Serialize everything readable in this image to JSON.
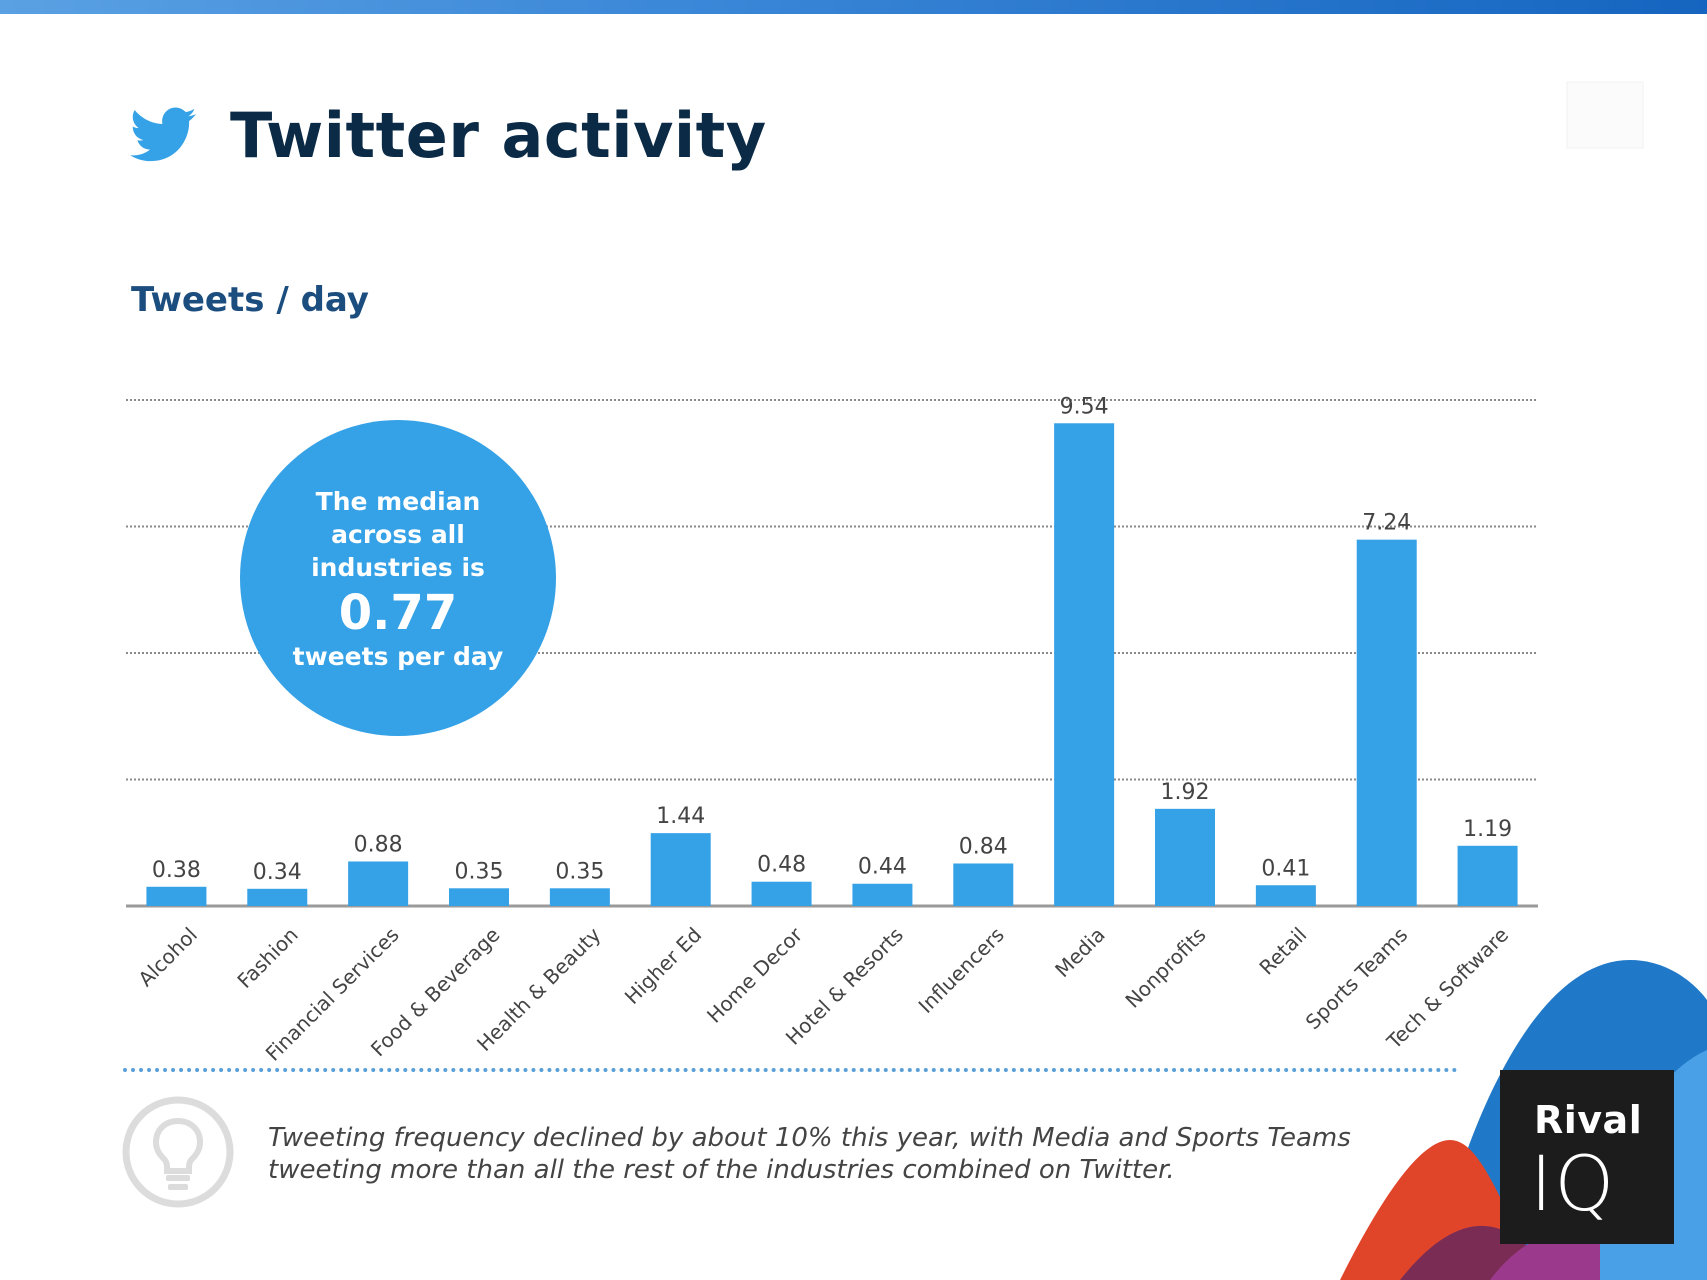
{
  "header": {
    "title": "Twitter activity",
    "subtitle": "Tweets / day"
  },
  "colors": {
    "bar": "#35a1e6",
    "title": "#0b2a45",
    "subtitle": "#1b4d7e",
    "gridline": "#8a8a8a"
  },
  "callout": {
    "text": "The median across all industries is",
    "value": "0.77",
    "unit": "tweets per day"
  },
  "chart_data": {
    "type": "bar",
    "title": "Tweets / day",
    "categories": [
      "Alcohol",
      "Fashion",
      "Financial Services",
      "Food & Beverage",
      "Health & Beauty",
      "Higher Ed",
      "Home Decor",
      "Hotel & Resorts",
      "Influencers",
      "Media",
      "Nonprofits",
      "Retail",
      "Sports Teams",
      "Tech & Software"
    ],
    "values": [
      0.38,
      0.34,
      0.88,
      0.35,
      0.35,
      1.44,
      0.48,
      0.44,
      0.84,
      9.54,
      1.92,
      0.41,
      7.24,
      1.19
    ],
    "value_labels": [
      "0.38",
      "0.34",
      "0.88",
      "0.35",
      "0.35",
      "1.44",
      "0.48",
      "0.44",
      "0.84",
      "9.54",
      "1.92",
      "0.41",
      "7.24",
      "1.19"
    ],
    "ylim": [
      0,
      10
    ],
    "gridlines": [
      2.5,
      5,
      7.5,
      10
    ],
    "xlabel": "",
    "ylabel": "",
    "legend": "none"
  },
  "insight": {
    "text": "Tweeting frequency declined by about 10% this year, with Media and Sports Teams tweeting more than all the rest of the industries combined on Twitter.",
    "icon": "lightbulb-icon"
  },
  "brand": {
    "line1": "Rival",
    "line2": "IQ"
  }
}
